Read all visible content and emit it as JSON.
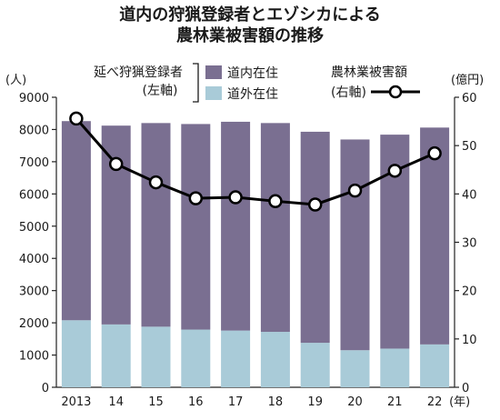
{
  "chart_data": {
    "type": "bar",
    "title_lines": [
      "道内の狩猟登録者とエゾシカによる",
      "農林業被害額の推移"
    ],
    "left_unit": "(人)",
    "right_unit": "(億円)",
    "x_unit": "(年)",
    "categories": [
      "2013",
      "14",
      "15",
      "16",
      "17",
      "18",
      "19",
      "20",
      "21",
      "22"
    ],
    "stacked": true,
    "y_left": {
      "min": 0,
      "max": 9000,
      "ticks": [
        0,
        1000,
        2000,
        3000,
        4000,
        5000,
        6000,
        7000,
        8000,
        9000
      ]
    },
    "y_right": {
      "min": 0,
      "max": 60,
      "ticks": [
        0,
        10,
        20,
        30,
        40,
        50,
        60
      ]
    },
    "legend": {
      "group_label_1": "延べ狩猟登録者",
      "group_label_2": "(左軸)",
      "line_label_1": "農林業被害額",
      "line_label_2": "(右軸)"
    },
    "series": [
      {
        "name": "道外在住",
        "axis": "left",
        "color": "#a9cbd8",
        "values": [
          2080,
          1950,
          1880,
          1790,
          1760,
          1720,
          1380,
          1150,
          1200,
          1330
        ]
      },
      {
        "name": "道内在住",
        "axis": "left",
        "color": "#7a6f91",
        "values": [
          6180,
          6170,
          6320,
          6380,
          6480,
          6480,
          6550,
          6540,
          6640,
          6730
        ]
      }
    ],
    "line_series": {
      "name": "農林業被害額",
      "axis": "right",
      "color": "#000000",
      "values": [
        55.6,
        46.2,
        42.4,
        39.1,
        39.3,
        38.5,
        37.8,
        40.7,
        44.8,
        48.4
      ]
    }
  }
}
